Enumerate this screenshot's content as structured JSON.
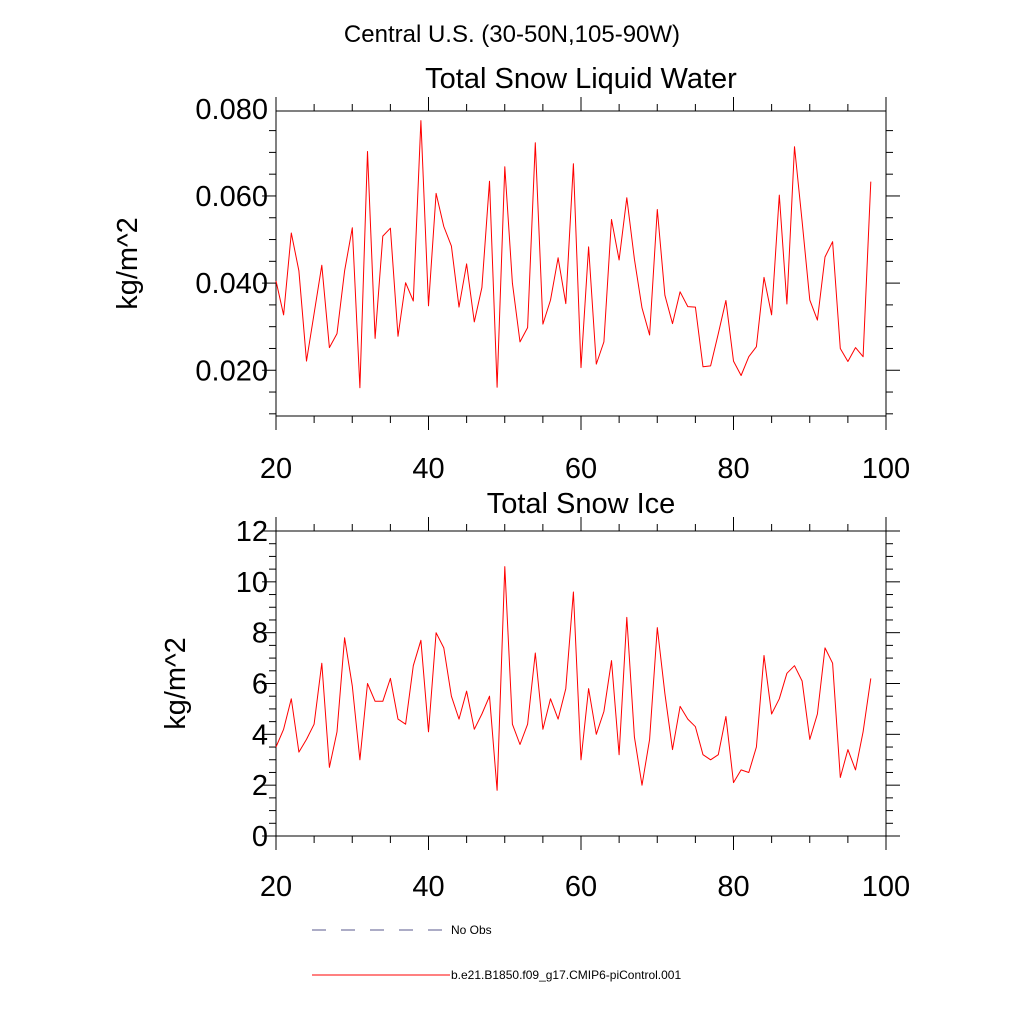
{
  "figure": {
    "suptitle": "Central U.S. (30-50N,105-90W)"
  },
  "chart_data": [
    {
      "type": "line",
      "title": "Total Snow Liquid Water",
      "xlabel": "",
      "ylabel": "kg/m^2",
      "xlim": [
        20,
        100
      ],
      "ylim": [
        0.0095,
        0.0795
      ],
      "xticks": [
        20,
        40,
        60,
        80,
        100
      ],
      "xtick_labels": [
        "20",
        "40",
        "60",
        "80",
        "100"
      ],
      "yticks": [
        0.02,
        0.04,
        0.06,
        0.08
      ],
      "ytick_labels": [
        "0.020",
        "0.040",
        "0.060",
        "0.080"
      ],
      "grid": false,
      "series": [
        {
          "name": "b.e21.B1850.f09_g17.CMIP6-piControl.001",
          "color": "#ff0000",
          "x": [
            20,
            21,
            22,
            23,
            24,
            25,
            26,
            27,
            28,
            29,
            30,
            31,
            32,
            33,
            34,
            35,
            36,
            37,
            38,
            39,
            40,
            41,
            42,
            43,
            44,
            45,
            46,
            47,
            48,
            49,
            50,
            51,
            52,
            53,
            54,
            55,
            56,
            57,
            58,
            59,
            60,
            61,
            62,
            63,
            64,
            65,
            66,
            67,
            68,
            69,
            70,
            71,
            72,
            73,
            74,
            75,
            76,
            77,
            78,
            79,
            80,
            81,
            82,
            83,
            84,
            85,
            86,
            87,
            88,
            89,
            90,
            91,
            92,
            93,
            94,
            95,
            96,
            97,
            98
          ],
          "y": [
            0.0405,
            0.0327,
            0.0515,
            0.0428,
            0.0221,
            0.033,
            0.0441,
            0.0252,
            0.0284,
            0.0428,
            0.0527,
            0.016,
            0.0702,
            0.0273,
            0.0508,
            0.0526,
            0.0278,
            0.0401,
            0.0359,
            0.0773,
            0.0348,
            0.0606,
            0.053,
            0.0485,
            0.0345,
            0.0444,
            0.0311,
            0.039,
            0.0634,
            0.0161,
            0.0667,
            0.04,
            0.0265,
            0.0298,
            0.0722,
            0.0306,
            0.0361,
            0.0458,
            0.0353,
            0.0674,
            0.0206,
            0.0483,
            0.0214,
            0.0265,
            0.0546,
            0.0453,
            0.0596,
            0.0455,
            0.0343,
            0.0281,
            0.0569,
            0.0372,
            0.0307,
            0.038,
            0.0346,
            0.0345,
            0.0208,
            0.021,
            0.0284,
            0.036,
            0.0221,
            0.0188,
            0.0231,
            0.0254,
            0.0413,
            0.0327,
            0.0602,
            0.0352,
            0.0713,
            0.0542,
            0.0361,
            0.0315,
            0.046,
            0.0495,
            0.025,
            0.022,
            0.0252,
            0.0231,
            0.0633
          ]
        }
      ]
    },
    {
      "type": "line",
      "title": "Total Snow Ice",
      "xlabel": "",
      "ylabel": "kg/m^2",
      "xlim": [
        20,
        100
      ],
      "ylim": [
        0,
        12
      ],
      "xticks": [
        20,
        40,
        60,
        80,
        100
      ],
      "xtick_labels": [
        "20",
        "40",
        "60",
        "80",
        "100"
      ],
      "yticks": [
        0,
        2,
        4,
        6,
        8,
        10,
        12
      ],
      "ytick_labels": [
        "0",
        "2",
        "4",
        "6",
        "8",
        "10",
        "12"
      ],
      "grid": false,
      "series": [
        {
          "name": "b.e21.B1850.f09_g17.CMIP6-piControl.001",
          "color": "#ff0000",
          "x": [
            20,
            21,
            22,
            23,
            24,
            25,
            26,
            27,
            28,
            29,
            30,
            31,
            32,
            33,
            34,
            35,
            36,
            37,
            38,
            39,
            40,
            41,
            42,
            43,
            44,
            45,
            46,
            47,
            48,
            49,
            50,
            51,
            52,
            53,
            54,
            55,
            56,
            57,
            58,
            59,
            60,
            61,
            62,
            63,
            64,
            65,
            66,
            67,
            68,
            69,
            70,
            71,
            72,
            73,
            74,
            75,
            76,
            77,
            78,
            79,
            80,
            81,
            82,
            83,
            84,
            85,
            86,
            87,
            88,
            89,
            90,
            91,
            92,
            93,
            94,
            95,
            96,
            97,
            98
          ],
          "y": [
            3.5,
            4.2,
            5.4,
            3.3,
            3.8,
            4.4,
            6.8,
            2.7,
            4.1,
            7.8,
            5.9,
            3.0,
            6.0,
            5.3,
            5.3,
            6.2,
            4.6,
            4.4,
            6.7,
            7.7,
            4.1,
            8.0,
            7.4,
            5.5,
            4.6,
            5.7,
            4.2,
            4.8,
            5.5,
            1.8,
            10.6,
            4.4,
            3.6,
            4.4,
            7.2,
            4.2,
            5.4,
            4.6,
            5.8,
            9.6,
            3.0,
            5.8,
            4.0,
            4.9,
            6.9,
            3.2,
            8.6,
            3.9,
            2.0,
            3.8,
            8.2,
            5.6,
            3.4,
            5.1,
            4.6,
            4.3,
            3.2,
            3.0,
            3.2,
            4.7,
            2.1,
            2.6,
            2.5,
            3.5,
            7.1,
            4.8,
            5.4,
            6.4,
            6.7,
            6.1,
            3.8,
            4.8,
            7.4,
            6.8,
            2.3,
            3.4,
            2.6,
            4.1,
            6.2
          ]
        }
      ]
    }
  ],
  "legend": {
    "placement": "bottom-left",
    "entries": [
      {
        "label": "No Obs",
        "color": "#5a5a8c",
        "style": "dashed"
      },
      {
        "label": "b.e21.B1850.f09_g17.CMIP6-piControl.001",
        "color": "#ff0000",
        "style": "solid"
      }
    ]
  }
}
